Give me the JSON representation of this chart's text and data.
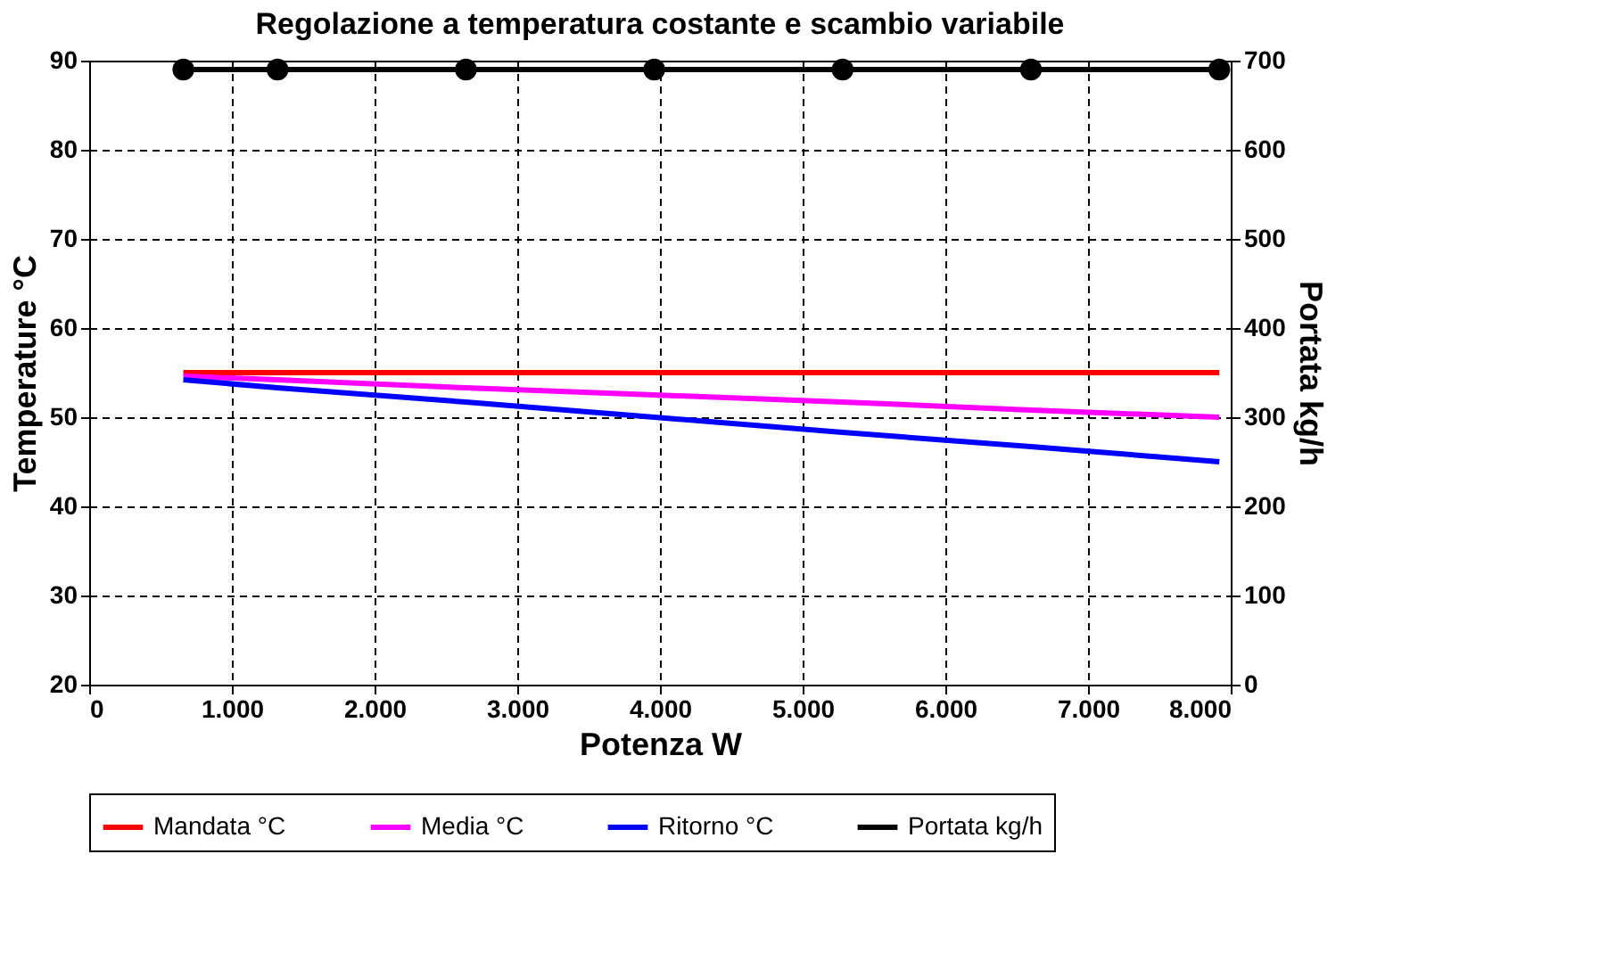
{
  "chart_data": {
    "type": "line",
    "title": "Regolazione a temperatura costante e scambio variabile",
    "xlabel": "Potenza W",
    "ylabel": "Temperature °C",
    "y2label": "Portata kg/h",
    "x": [
      660,
      1320,
      2640,
      3960,
      5280,
      6600,
      7920
    ],
    "series": [
      {
        "name": "Mandata °C",
        "color": "#ff0000",
        "values": [
          55,
          55,
          55,
          55,
          55,
          55,
          55
        ]
      },
      {
        "name": "Media °C",
        "color": "#ff00ff",
        "values": [
          54.6,
          54.2,
          53.3,
          52.5,
          51.7,
          50.8,
          50
        ]
      },
      {
        "name": "Ritorno °C",
        "color": "#0000ff",
        "values": [
          54.2,
          53.3,
          51.7,
          50,
          48.3,
          46.7,
          45
        ]
      },
      {
        "name": "Portata kg/h",
        "color": "#000000",
        "values": [
          690,
          690,
          690,
          690,
          690,
          690,
          690
        ],
        "axis": "y2",
        "marker": "circle"
      }
    ],
    "xlim": [
      0,
      8000
    ],
    "xticks": [
      0,
      {
        "value": 1000,
        "label": "1.000"
      },
      {
        "value": 2000,
        "label": "2.000"
      },
      {
        "value": 3000,
        "label": "3.000"
      },
      {
        "value": 4000,
        "label": "4.000"
      },
      {
        "value": 5000,
        "label": "5.000"
      },
      {
        "value": 6000,
        "label": "6.000"
      },
      {
        "value": 7000,
        "label": "7.000"
      },
      {
        "value": 8000,
        "label": "8.000"
      }
    ],
    "ylim": [
      20,
      90
    ],
    "yticks": [
      20,
      30,
      40,
      50,
      60,
      70,
      80,
      90
    ],
    "y2lim": [
      0,
      700
    ],
    "y2ticks": [
      0,
      100,
      200,
      300,
      400,
      500,
      600,
      700
    ],
    "grid": true,
    "legend": "bottom",
    "line_style": "solid"
  }
}
